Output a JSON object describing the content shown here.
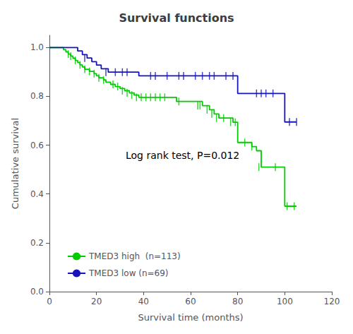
{
  "chart_data": {
    "type": "step",
    "title": "Survival functions",
    "x_label": "Survival time (months)",
    "y_label": "Cumulative survival",
    "xlim": [
      0,
      120
    ],
    "ylim": [
      0.0,
      1.05
    ],
    "xticks": [
      0,
      20,
      40,
      60,
      80,
      100,
      120
    ],
    "yticks": [
      {
        "value": 0.0,
        "label": "0.0"
      },
      0.2,
      0.4,
      0.6,
      0.8,
      {
        "value": 1.0,
        "label": "1.0"
      }
    ],
    "grid": false,
    "legend": "lower left",
    "annotation": "Log rank test, P=0.012",
    "series": [
      {
        "name": "TMED3 high  (n=113)",
        "color": "#00CC00",
        "marker": "vline",
        "x": [
          0,
          5,
          6,
          7,
          8,
          9,
          10,
          11,
          12,
          13,
          14,
          15,
          17,
          19,
          20,
          21,
          23,
          24,
          26,
          28,
          30,
          32,
          34,
          36,
          38,
          40,
          42,
          44,
          46,
          48,
          52,
          54,
          56,
          58,
          60,
          62,
          65,
          68,
          70,
          72,
          75,
          78,
          80,
          82,
          85,
          86,
          88,
          90,
          92,
          95,
          98,
          100,
          102,
          105
        ],
        "values": [
          1.0,
          1.0,
          0.991,
          0.982,
          0.973,
          0.965,
          0.956,
          0.947,
          0.938,
          0.929,
          0.92,
          0.911,
          0.902,
          0.893,
          0.884,
          0.876,
          0.867,
          0.858,
          0.849,
          0.84,
          0.832,
          0.823,
          0.814,
          0.805,
          0.796,
          0.796,
          0.796,
          0.796,
          0.796,
          0.796,
          0.796,
          0.779,
          0.779,
          0.779,
          0.779,
          0.779,
          0.762,
          0.745,
          0.728,
          0.711,
          0.711,
          0.694,
          0.611,
          0.611,
          0.611,
          0.594,
          0.577,
          0.51,
          0.51,
          0.51,
          0.51,
          0.35,
          0.35,
          0.35
        ],
        "censors_x": [
          8,
          9,
          11,
          13,
          15,
          17,
          19,
          21,
          23,
          27,
          29,
          31,
          33,
          35,
          37,
          39,
          41,
          43,
          45,
          47,
          49,
          55,
          63,
          64,
          67,
          69,
          71,
          74,
          77,
          79,
          83,
          86,
          89,
          96,
          101,
          104
        ],
        "censors_y": [
          0.973,
          0.965,
          0.947,
          0.929,
          0.911,
          0.902,
          0.893,
          0.876,
          0.867,
          0.849,
          0.84,
          0.823,
          0.814,
          0.805,
          0.796,
          0.796,
          0.796,
          0.796,
          0.796,
          0.796,
          0.796,
          0.779,
          0.762,
          0.762,
          0.745,
          0.728,
          0.711,
          0.711,
          0.694,
          0.694,
          0.611,
          0.594,
          0.51,
          0.51,
          0.35,
          0.35
        ]
      },
      {
        "name": "TMED3 low (n=69)",
        "color": "#1515BB",
        "marker": "vline",
        "x": [
          0,
          10,
          12,
          14,
          16,
          18,
          20,
          22,
          25,
          26,
          28,
          29,
          32,
          34,
          36,
          38,
          40,
          43,
          45,
          46,
          50,
          52,
          55,
          57,
          60,
          62,
          65,
          68,
          70,
          72,
          75,
          78,
          80,
          82,
          85,
          88,
          90,
          92,
          95,
          100,
          102,
          105
        ],
        "values": [
          1.0,
          1.0,
          0.986,
          0.971,
          0.957,
          0.942,
          0.928,
          0.913,
          0.899,
          0.899,
          0.899,
          0.899,
          0.899,
          0.899,
          0.899,
          0.884,
          0.884,
          0.884,
          0.884,
          0.884,
          0.884,
          0.884,
          0.884,
          0.884,
          0.884,
          0.884,
          0.884,
          0.884,
          0.884,
          0.884,
          0.884,
          0.884,
          0.812,
          0.812,
          0.812,
          0.812,
          0.812,
          0.812,
          0.812,
          0.695,
          0.695,
          0.695
        ],
        "censors_x": [
          15,
          24,
          28,
          31,
          33,
          43,
          45,
          50,
          55,
          57,
          62,
          65,
          68,
          70,
          75,
          78,
          88,
          90,
          92,
          95,
          102,
          105
        ],
        "censors_y": [
          0.957,
          0.899,
          0.899,
          0.899,
          0.899,
          0.884,
          0.884,
          0.884,
          0.884,
          0.884,
          0.884,
          0.884,
          0.884,
          0.884,
          0.884,
          0.884,
          0.812,
          0.812,
          0.812,
          0.812,
          0.695,
          0.695
        ]
      }
    ]
  }
}
